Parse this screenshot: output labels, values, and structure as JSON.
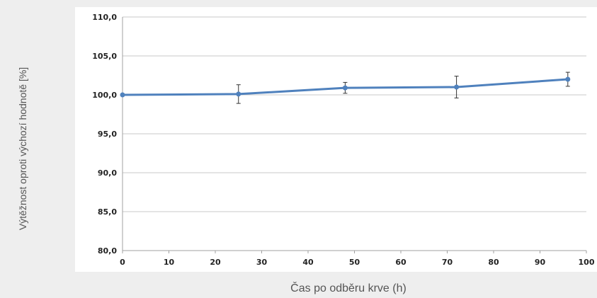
{
  "chart_data": {
    "type": "line",
    "xlabel": "Čas po odběru krve (h)",
    "ylabel": "Výtěžnost oproti výchozí hodnotě [%]",
    "xlim": [
      0,
      100
    ],
    "ylim": [
      80,
      110
    ],
    "x_ticks": [
      "0",
      "10",
      "20",
      "30",
      "40",
      "50",
      "60",
      "70",
      "80",
      "90",
      "100"
    ],
    "y_ticks": [
      "80,0",
      "85,0",
      "90,0",
      "95,0",
      "100,0",
      "105,0",
      "110,0"
    ],
    "grid": true,
    "series": [
      {
        "color": "#4f81bd",
        "x": [
          0,
          25,
          48,
          72,
          96
        ],
        "y": [
          100.0,
          100.1,
          100.9,
          101.0,
          102.0
        ],
        "error": [
          0,
          1.2,
          0.7,
          1.4,
          0.9
        ]
      }
    ]
  }
}
